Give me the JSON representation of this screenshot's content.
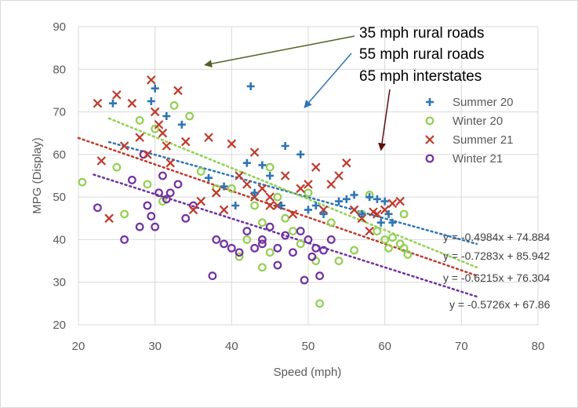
{
  "chart_data": {
    "type": "scatter",
    "xlabel": "Speed (mph)",
    "ylabel": "MPG (Display)",
    "xlim": [
      20,
      80
    ],
    "ylim": [
      20,
      90
    ],
    "x_ticks": [
      "20",
      "30",
      "40",
      "50",
      "60",
      "70",
      "80"
    ],
    "y_ticks": [
      "20",
      "30",
      "40",
      "50",
      "60",
      "70",
      "80",
      "90"
    ],
    "grid": true,
    "legend_position": "right",
    "series": [
      {
        "name": "Summer 20",
        "marker": "plus",
        "color": "#2e75b6",
        "points": [
          [
            24.5,
            72
          ],
          [
            29.5,
            72.5
          ],
          [
            30,
            75.5
          ],
          [
            31.5,
            69
          ],
          [
            33.5,
            67
          ],
          [
            37,
            54.5
          ],
          [
            39,
            52.5
          ],
          [
            40.5,
            48
          ],
          [
            42,
            58
          ],
          [
            42.5,
            76
          ],
          [
            43,
            51
          ],
          [
            44,
            57.5
          ],
          [
            45,
            55
          ],
          [
            46.5,
            48
          ],
          [
            47,
            62
          ],
          [
            49,
            60
          ],
          [
            50,
            47
          ],
          [
            51,
            48
          ],
          [
            52,
            46
          ],
          [
            54,
            49
          ],
          [
            55,
            49.5
          ],
          [
            56,
            50.5
          ],
          [
            57,
            46
          ],
          [
            58,
            50
          ],
          [
            59,
            49.5
          ],
          [
            60,
            49
          ],
          [
            60.5,
            46
          ],
          [
            61,
            44
          ],
          [
            59.5,
            44
          ]
        ],
        "trendline": {
          "slope": -0.4984,
          "intercept": 74.884,
          "x_range": [
            24,
            72
          ],
          "label": "y = -0.4984x + 74.884"
        }
      },
      {
        "name": "Winter 20",
        "marker": "circle",
        "color": "#92d050",
        "points": [
          [
            20.5,
            53.5
          ],
          [
            25,
            57
          ],
          [
            26,
            46
          ],
          [
            28,
            68
          ],
          [
            29,
            53
          ],
          [
            30,
            66
          ],
          [
            31,
            49
          ],
          [
            32.5,
            71.5
          ],
          [
            34.5,
            69
          ],
          [
            36,
            56
          ],
          [
            38,
            52
          ],
          [
            40,
            52
          ],
          [
            41,
            36
          ],
          [
            42,
            40
          ],
          [
            43,
            48
          ],
          [
            44,
            44
          ],
          [
            45,
            57
          ],
          [
            45,
            37
          ],
          [
            46,
            50
          ],
          [
            47,
            45
          ],
          [
            48,
            42
          ],
          [
            49,
            39
          ],
          [
            50,
            51
          ],
          [
            51,
            35
          ],
          [
            51.5,
            25
          ],
          [
            53,
            44
          ],
          [
            54,
            35
          ],
          [
            56,
            37.5
          ],
          [
            57,
            46
          ],
          [
            58,
            50.5
          ],
          [
            59,
            42
          ],
          [
            60,
            40
          ],
          [
            60.5,
            38
          ],
          [
            61,
            40.5
          ],
          [
            62,
            39
          ],
          [
            62.5,
            38
          ],
          [
            63,
            36.5
          ],
          [
            62.5,
            46
          ],
          [
            44,
            33.5
          ]
        ],
        "trendline": {
          "slope": -0.7283,
          "intercept": 85.942,
          "x_range": [
            24,
            72
          ],
          "label": "y = -0.7283x + 85.942"
        }
      },
      {
        "name": "Summer 21",
        "marker": "x",
        "color": "#c0392b",
        "points": [
          [
            22.5,
            72
          ],
          [
            23,
            58.5
          ],
          [
            24,
            45
          ],
          [
            25,
            74
          ],
          [
            26,
            62
          ],
          [
            27,
            72
          ],
          [
            28,
            64
          ],
          [
            29,
            60
          ],
          [
            29.5,
            77.5
          ],
          [
            30,
            70
          ],
          [
            30.5,
            67
          ],
          [
            31,
            65
          ],
          [
            31.5,
            62
          ],
          [
            32,
            58
          ],
          [
            33,
            75
          ],
          [
            34,
            63
          ],
          [
            35,
            47
          ],
          [
            36,
            49
          ],
          [
            37,
            64
          ],
          [
            38,
            51
          ],
          [
            39,
            47
          ],
          [
            40,
            62.5
          ],
          [
            41,
            55
          ],
          [
            42,
            53
          ],
          [
            43,
            60.5
          ],
          [
            44,
            52
          ],
          [
            45,
            50
          ],
          [
            46,
            48
          ],
          [
            47,
            55
          ],
          [
            48,
            46
          ],
          [
            49,
            52
          ],
          [
            50,
            53
          ],
          [
            51,
            57
          ],
          [
            52,
            47
          ],
          [
            53,
            53
          ],
          [
            54,
            55
          ],
          [
            55,
            58
          ],
          [
            56,
            47
          ],
          [
            57,
            45
          ],
          [
            58,
            42
          ],
          [
            59,
            46
          ],
          [
            60,
            47
          ],
          [
            61,
            48.5
          ],
          [
            62,
            49
          ],
          [
            58.5,
            46.5
          ],
          [
            45,
            48
          ],
          [
            43,
            50
          ]
        ],
        "trendline": {
          "slope": -0.6215,
          "intercept": 76.304,
          "x_range": [
            20,
            72
          ],
          "label": "y = -0.6215x + 76.304"
        }
      },
      {
        "name": "Winter 21",
        "marker": "circle",
        "color": "#7030a0",
        "points": [
          [
            22.5,
            47.5
          ],
          [
            26,
            40
          ],
          [
            27,
            54
          ],
          [
            28,
            43
          ],
          [
            28.5,
            60
          ],
          [
            29,
            48
          ],
          [
            29.5,
            45.5
          ],
          [
            30,
            43
          ],
          [
            30.5,
            51
          ],
          [
            31,
            55
          ],
          [
            31.5,
            49.5
          ],
          [
            32,
            51
          ],
          [
            33,
            53
          ],
          [
            34,
            45
          ],
          [
            35,
            48
          ],
          [
            37.5,
            31.5
          ],
          [
            38,
            40
          ],
          [
            39,
            39
          ],
          [
            40,
            38
          ],
          [
            41,
            37
          ],
          [
            42,
            42
          ],
          [
            43,
            38
          ],
          [
            44,
            40
          ],
          [
            45,
            43
          ],
          [
            46,
            34
          ],
          [
            47,
            41
          ],
          [
            48,
            37
          ],
          [
            49,
            42
          ],
          [
            49.5,
            30.5
          ],
          [
            50,
            40
          ],
          [
            50.5,
            36
          ],
          [
            51,
            38
          ],
          [
            51.5,
            31.5
          ],
          [
            52,
            37.5
          ],
          [
            53,
            40
          ],
          [
            46,
            38
          ],
          [
            44,
            39
          ]
        ],
        "trendline": {
          "slope": -0.5726,
          "intercept": 67.86,
          "x_range": [
            22,
            72
          ],
          "label": "y = -0.5726x + 67.86"
        }
      }
    ],
    "annotations": [
      {
        "text": "35 mph rural roads",
        "arrow_color": "#4f6228",
        "arrow_to": [
          36.5,
          81
        ]
      },
      {
        "text": "55 mph rural roads",
        "arrow_color": "#2e75b6",
        "arrow_to": [
          49.5,
          71
        ]
      },
      {
        "text": "65 mph interstates",
        "arrow_color": "#5a0f0f",
        "arrow_to": [
          59.5,
          61
        ]
      }
    ]
  }
}
